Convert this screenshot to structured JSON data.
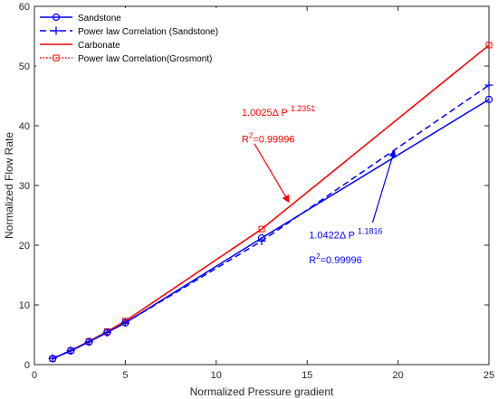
{
  "chart_data": {
    "type": "line",
    "xlabel": "Normalized Pressure gradient",
    "ylabel": "Normalized Flow Rate",
    "xlim": [
      0,
      25
    ],
    "ylim": [
      0,
      60
    ],
    "xticks": [
      0,
      5,
      10,
      15,
      20,
      25
    ],
    "yticks": [
      0,
      10,
      20,
      30,
      40,
      50,
      60
    ],
    "grid": false,
    "legend_position": "top-left",
    "series": [
      {
        "name": "Sandstone",
        "color": "#0000ff",
        "style": "solid",
        "marker": "circle",
        "x": [
          1,
          2,
          3,
          4,
          5,
          12.5,
          25
        ],
        "y": [
          1.0,
          2.3,
          3.8,
          5.4,
          7.0,
          21.2,
          44.4
        ]
      },
      {
        "name": "Power law Correlation (Sandstone)",
        "color": "#0000ff",
        "style": "dashed",
        "marker": "plus",
        "x": [
          1,
          2,
          3,
          4,
          5,
          12.5,
          25
        ],
        "y": [
          1.04,
          2.36,
          3.82,
          5.38,
          7.0,
          20.7,
          46.8
        ]
      },
      {
        "name": "Carbonate",
        "color": "#ff0000",
        "style": "solid",
        "marker": "none",
        "x": [
          1,
          2,
          3,
          4,
          5,
          12.5,
          25
        ],
        "y": [
          1.0,
          2.36,
          3.9,
          5.55,
          7.3,
          22.7,
          53.5
        ]
      },
      {
        "name": "Power law Correlation(Grosmont)",
        "color": "#ff0000",
        "style": "dotted",
        "marker": "square",
        "x": [
          1,
          2,
          3,
          4,
          5,
          12.5,
          25
        ],
        "y": [
          1.0,
          2.36,
          3.9,
          5.55,
          7.3,
          22.7,
          53.5
        ]
      }
    ],
    "annotations": [
      {
        "color": "#ff0000",
        "coef": "1.0025Δ P",
        "exponent": "1.2351",
        "r2_prefix": "R",
        "r2_sup": "2",
        "r2_value": "=0.99996",
        "x": 11.4,
        "y": 41.7,
        "r2_x": 11.4,
        "r2_y": 37.2,
        "arrow_from": [
          12.1,
          37.0
        ],
        "arrow_to": [
          14,
          27.2
        ]
      },
      {
        "color": "#0000ff",
        "coef": "1.0422Δ P",
        "exponent": "1.1816",
        "r2_prefix": "R",
        "r2_sup": "2",
        "r2_value": "=0.99996",
        "x": 15.1,
        "y": 21.1,
        "r2_x": 15.1,
        "r2_y": 17.0,
        "arrow_from": [
          18.6,
          23.8
        ],
        "arrow_to": [
          19.8,
          35.9
        ]
      }
    ]
  }
}
